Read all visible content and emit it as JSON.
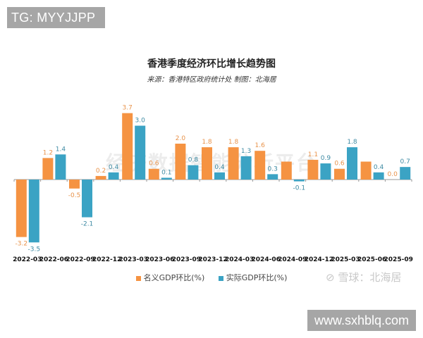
{
  "badges": {
    "top_left": "TG: MYYJJPP",
    "bottom_right": "www.sxhblq.com"
  },
  "watermarks": {
    "center": "经济数据智能分析平台",
    "bottom": "雪球：北海居"
  },
  "colors": {
    "nominal": "#f59342",
    "real": "#3ba3c4",
    "nominal_label": "#e8924a",
    "real_label": "#3d8aa3",
    "axis": "#999999"
  },
  "chart_data": {
    "type": "bar",
    "title": "香港季度经济环比增长趋势图",
    "subtitle": "来源：香港特区政府统计处  制图：北海居",
    "xlabel": "",
    "ylabel": "",
    "ylim": [
      -3.5,
      3.7
    ],
    "grid": false,
    "legend_position": "bottom",
    "categories": [
      "2022-03",
      "2022-06",
      "2022-09",
      "2022-12",
      "2023-03",
      "2023-06",
      "2023-09",
      "2023-12",
      "2024-03",
      "2024-06",
      "2024-09",
      "2024-12",
      "2025-03",
      "2025-06",
      "2025-09"
    ],
    "series": [
      {
        "name": "名义GDP环比(%)",
        "values": [
          -3.2,
          1.2,
          -0.5,
          0.2,
          3.7,
          0.6,
          2.0,
          1.8,
          1.8,
          1.6,
          1.0,
          1.1,
          0.6,
          1.0,
          0.0
        ],
        "labels": [
          "-3.2",
          "1.2",
          "-0.5",
          "0.2",
          "3.7",
          "0.6",
          "2.0",
          "1.8",
          "1.8",
          "1.6",
          "",
          "1.1",
          "0.6",
          "",
          "0.0"
        ]
      },
      {
        "name": "实际GDP环比(%)",
        "values": [
          -3.5,
          1.4,
          -2.1,
          0.4,
          3.0,
          0.1,
          0.8,
          0.4,
          1.3,
          0.3,
          -0.1,
          0.9,
          1.8,
          0.4,
          0.7
        ],
        "labels": [
          "-3.5",
          "1.4",
          "-2.1",
          "0.4",
          "3.0",
          "0.1",
          "0.8",
          "0.4",
          "1.3",
          "0.3",
          "-0.1",
          "0.9",
          "1.8",
          "0.4",
          "0.7"
        ]
      }
    ]
  }
}
